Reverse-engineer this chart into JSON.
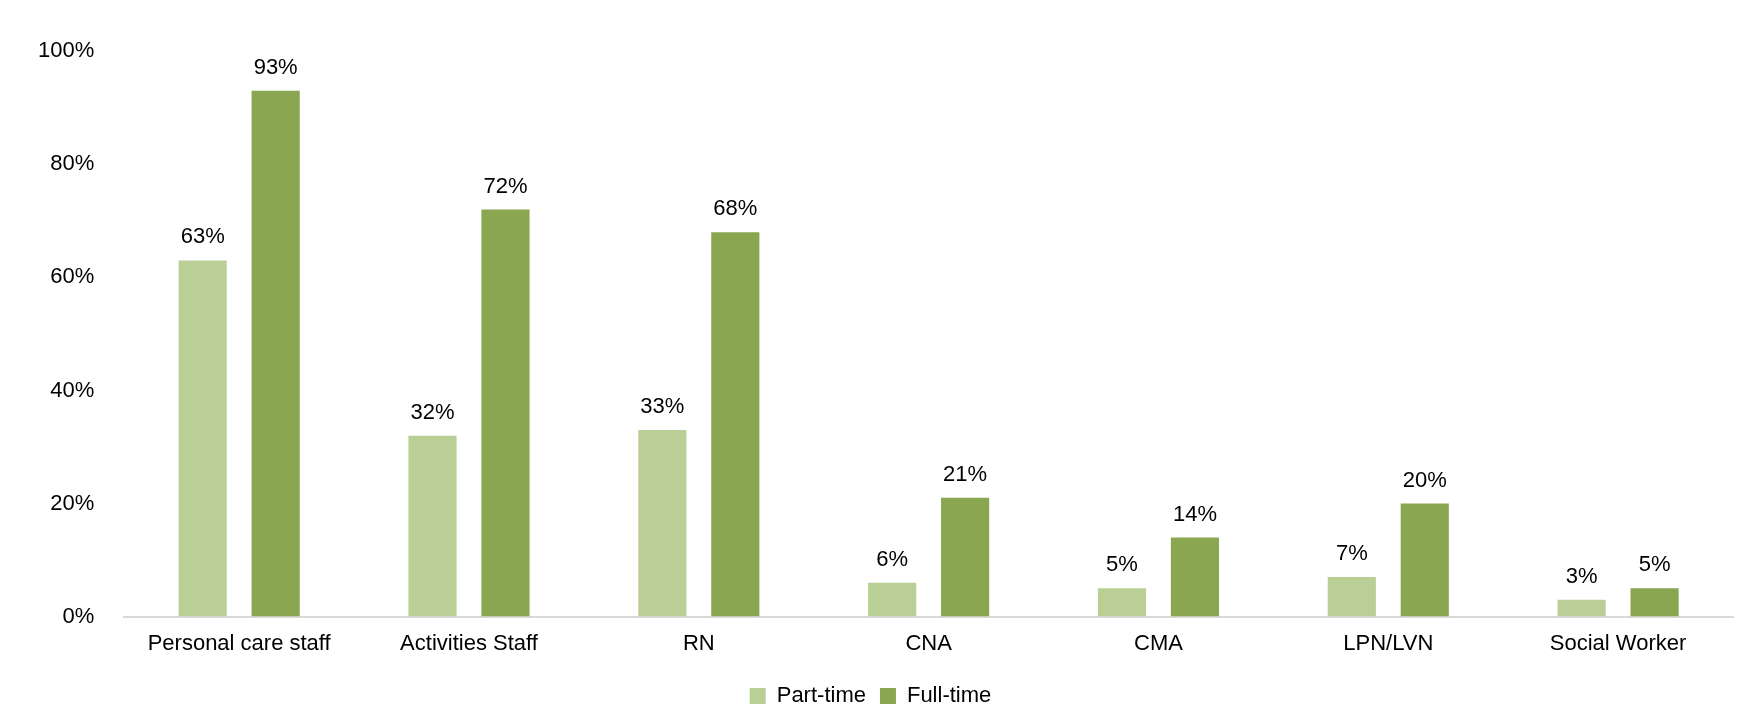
{
  "chart_data": {
    "type": "bar",
    "categories": [
      "Personal care staff",
      "Activities Staff",
      "RN",
      "CNA",
      "CMA",
      "LPN/LVN",
      "Social Worker"
    ],
    "series": [
      {
        "name": "Part-time",
        "color": "#b9cf96",
        "values": [
          63,
          32,
          33,
          6,
          5,
          7,
          3
        ],
        "value_labels": [
          "63%",
          "32%",
          "33%",
          "6%",
          "5%",
          "7%",
          "3%"
        ]
      },
      {
        "name": "Full-time",
        "color": "#8aa650",
        "values": [
          93,
          72,
          68,
          21,
          14,
          20,
          5
        ],
        "value_labels": [
          "93%",
          "72%",
          "68%",
          "21%",
          "14%",
          "20%",
          "5%"
        ]
      }
    ],
    "ylim": [
      0,
      100
    ],
    "yticks": [
      {
        "value": 0,
        "label": "0%"
      },
      {
        "value": 20,
        "label": "20%"
      },
      {
        "value": 40,
        "label": "40%"
      },
      {
        "value": 60,
        "label": "60%"
      },
      {
        "value": 80,
        "label": "80%"
      },
      {
        "value": 100,
        "label": "100%"
      }
    ],
    "grid": false,
    "legend": "bottom"
  }
}
